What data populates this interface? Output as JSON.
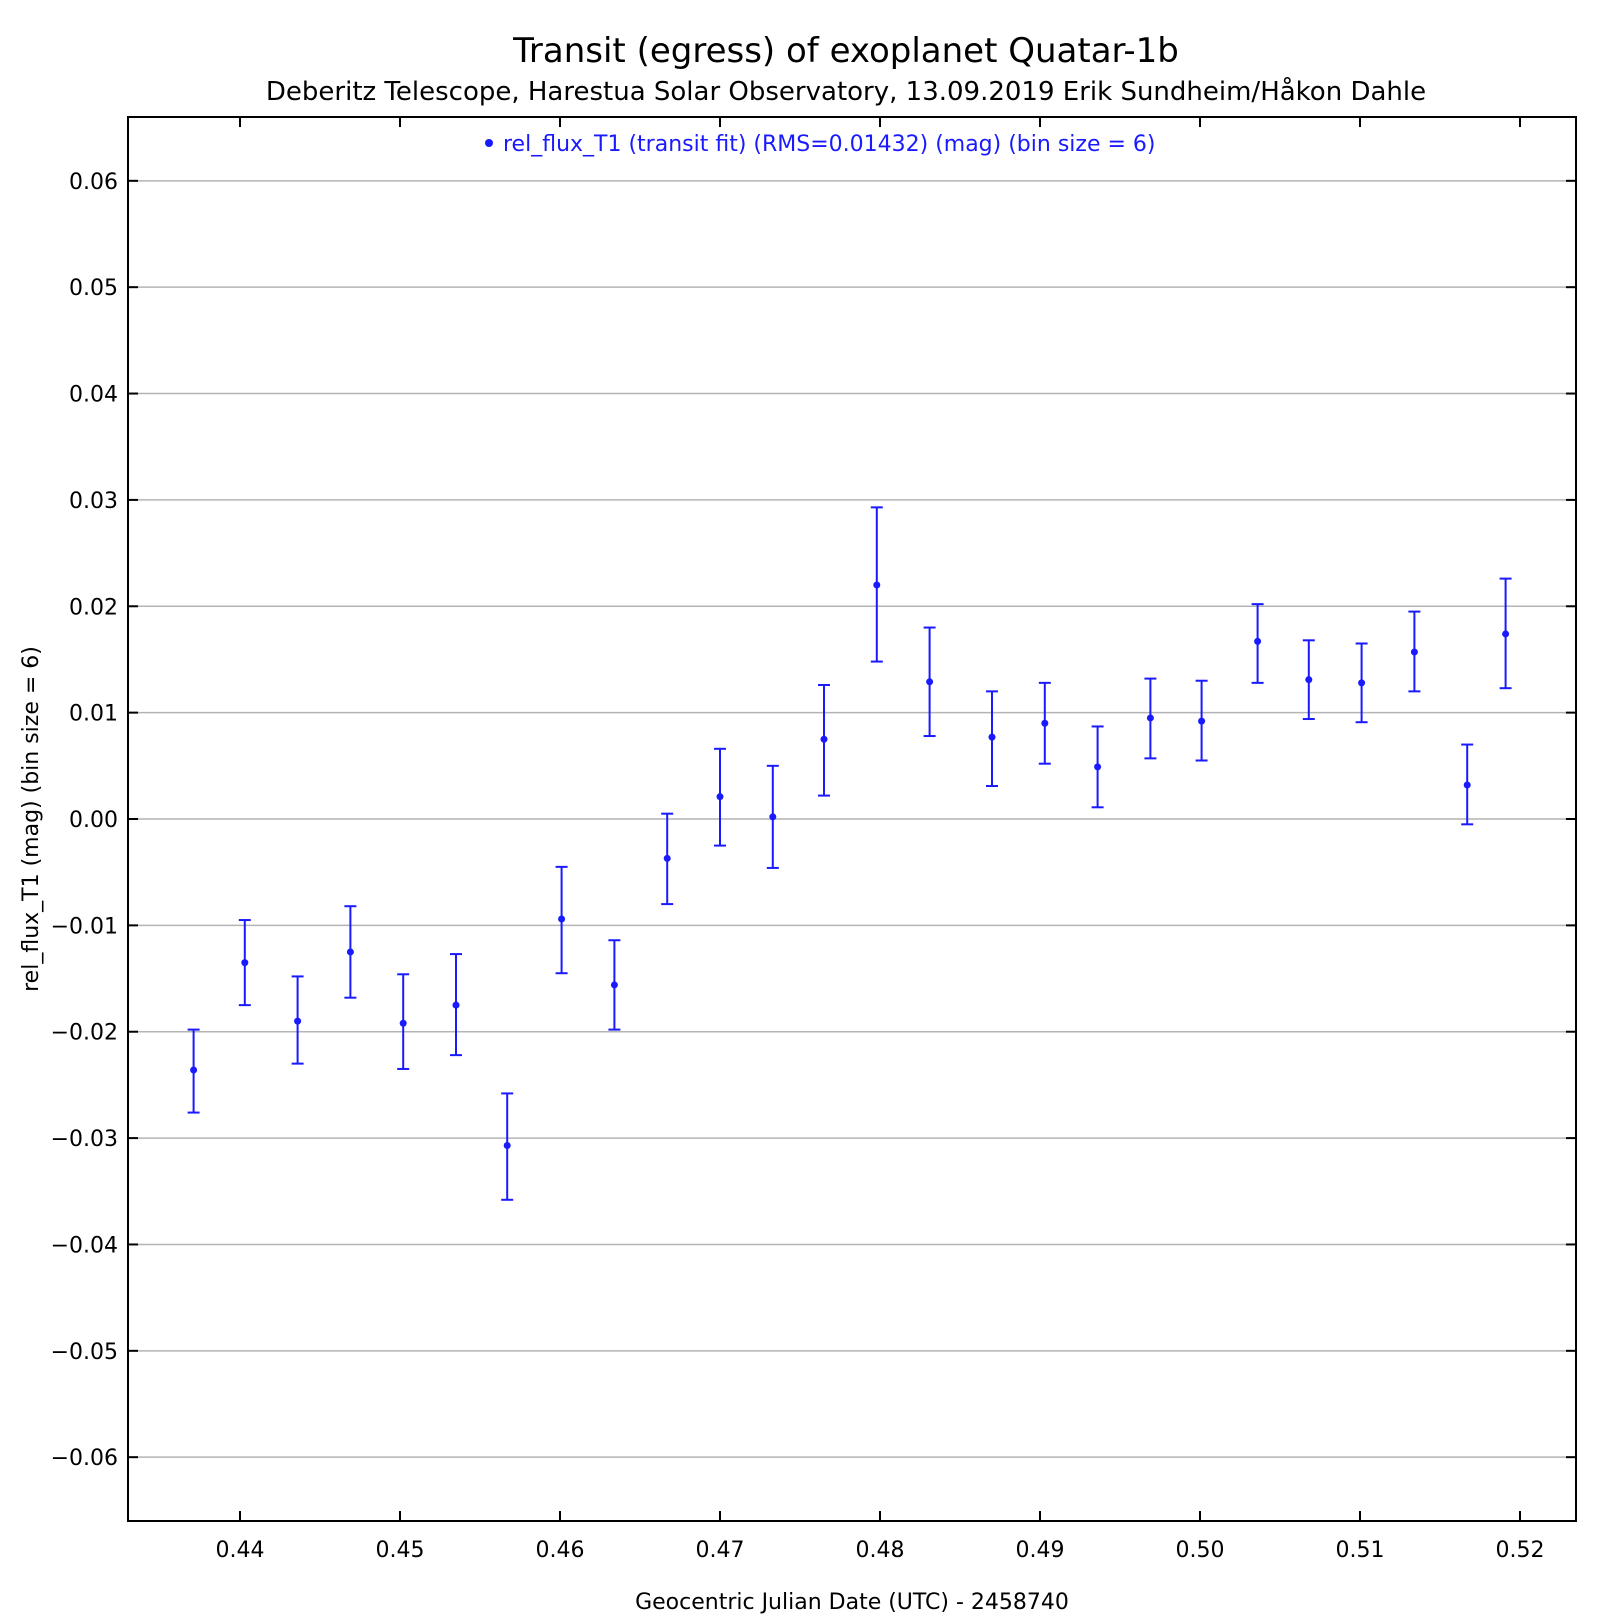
{
  "chart_data": {
    "type": "scatter",
    "title": "Transit (egress) of exoplanet Quatar-1b",
    "subtitle": "Deberitz Telescope, Harestua Solar Observatory, 13.09.2019  Erik Sundheim/Håkon Dahle",
    "xlabel": "Geocentric Julian Date (UTC) - 2458740",
    "ylabel": "rel_flux_T1 (mag) (bin size = 6)",
    "xlim": [
      0.433,
      0.5235
    ],
    "ylim": [
      -0.066,
      0.066
    ],
    "x_ticks": [
      0.44,
      0.45,
      0.46,
      0.47,
      0.48,
      0.49,
      0.5,
      0.51,
      0.52
    ],
    "x_tick_labels": [
      "0.44",
      "0.45",
      "0.46",
      "0.47",
      "0.48",
      "0.49",
      "0.50",
      "0.51",
      "0.52"
    ],
    "y_ticks": [
      0.06,
      0.05,
      0.04,
      0.03,
      0.02,
      0.01,
      0.0,
      -0.01,
      -0.02,
      -0.03,
      -0.04,
      -0.05,
      -0.06
    ],
    "y_tick_labels": [
      "0.06",
      "0.05",
      "0.04",
      "0.03",
      "0.02",
      "0.01",
      "0.00",
      "−0.01",
      "−0.02",
      "−0.03",
      "−0.04",
      "−0.05",
      "−0.06"
    ],
    "grid": "horizontal",
    "legend_position": "top-center",
    "series_color": "#1a1aff",
    "series": [
      {
        "name": "rel_flux_T1 (transit fit) (RMS=0.01432) (mag) (bin size = 6)",
        "points": [
          {
            "x": 0.4371,
            "y": -0.0236,
            "lo": -0.0276,
            "hi": -0.0198
          },
          {
            "x": 0.4403,
            "y": -0.0135,
            "lo": -0.0175,
            "hi": -0.0095
          },
          {
            "x": 0.4436,
            "y": -0.019,
            "lo": -0.023,
            "hi": -0.0148
          },
          {
            "x": 0.4469,
            "y": -0.0125,
            "lo": -0.0168,
            "hi": -0.0082
          },
          {
            "x": 0.4502,
            "y": -0.0192,
            "lo": -0.0235,
            "hi": -0.0146
          },
          {
            "x": 0.4535,
            "y": -0.0175,
            "lo": -0.0222,
            "hi": -0.0127
          },
          {
            "x": 0.4567,
            "y": -0.0307,
            "lo": -0.0358,
            "hi": -0.0258
          },
          {
            "x": 0.4601,
            "y": -0.0094,
            "lo": -0.0145,
            "hi": -0.0045
          },
          {
            "x": 0.4634,
            "y": -0.0156,
            "lo": -0.0198,
            "hi": -0.0114
          },
          {
            "x": 0.4667,
            "y": -0.0037,
            "lo": -0.008,
            "hi": 0.0005
          },
          {
            "x": 0.47,
            "y": 0.0021,
            "lo": -0.0025,
            "hi": 0.0066
          },
          {
            "x": 0.4733,
            "y": 0.0002,
            "lo": -0.0046,
            "hi": 0.005
          },
          {
            "x": 0.4765,
            "y": 0.0075,
            "lo": 0.0022,
            "hi": 0.0126
          },
          {
            "x": 0.4798,
            "y": 0.022,
            "lo": 0.0148,
            "hi": 0.0293
          },
          {
            "x": 0.4831,
            "y": 0.0129,
            "lo": 0.0078,
            "hi": 0.018
          },
          {
            "x": 0.487,
            "y": 0.0077,
            "lo": 0.0031,
            "hi": 0.012
          },
          {
            "x": 0.4903,
            "y": 0.009,
            "lo": 0.0052,
            "hi": 0.0128
          },
          {
            "x": 0.4936,
            "y": 0.0049,
            "lo": 0.0011,
            "hi": 0.0087
          },
          {
            "x": 0.4969,
            "y": 0.0095,
            "lo": 0.0057,
            "hi": 0.0132
          },
          {
            "x": 0.5001,
            "y": 0.0092,
            "lo": 0.0055,
            "hi": 0.013
          },
          {
            "x": 0.5036,
            "y": 0.0167,
            "lo": 0.0128,
            "hi": 0.0202
          },
          {
            "x": 0.5068,
            "y": 0.0131,
            "lo": 0.0094,
            "hi": 0.0168
          },
          {
            "x": 0.5101,
            "y": 0.0128,
            "lo": 0.0091,
            "hi": 0.0165
          },
          {
            "x": 0.5134,
            "y": 0.0157,
            "lo": 0.012,
            "hi": 0.0195
          },
          {
            "x": 0.5167,
            "y": 0.0032,
            "lo": -0.0005,
            "hi": 0.007
          },
          {
            "x": 0.5191,
            "y": 0.0174,
            "lo": 0.0123,
            "hi": 0.0226
          }
        ]
      }
    ]
  }
}
